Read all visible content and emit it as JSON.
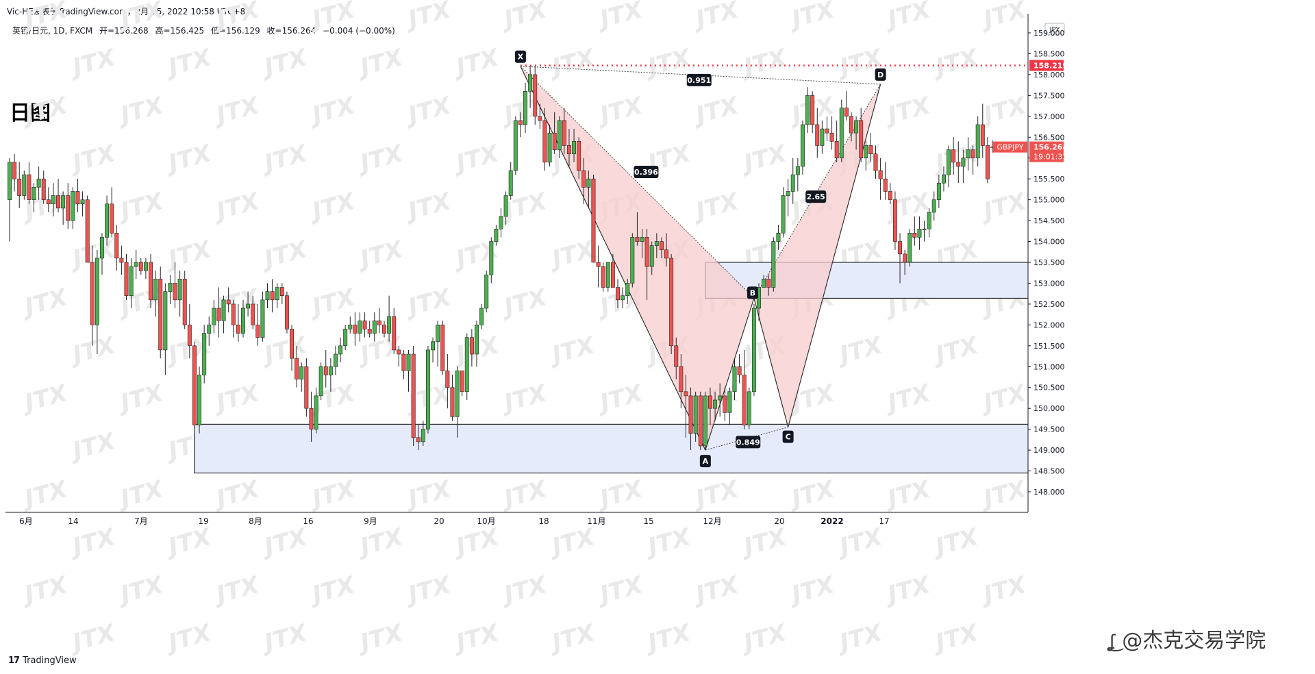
{
  "header": {
    "publish_line": "Vic-HE发表于TradingView.com，2月 15, 2022 10:58 UTC+8",
    "symbol_desc": "英镑/日元, 1D, FXCM",
    "open": "开=156.268",
    "high": "高=156.425",
    "low": "低=156.129",
    "close": "收=156.264",
    "change": "−0.004 (−0.00%)"
  },
  "chart_title": "日图",
  "footer": {
    "brand": "TradingView",
    "brand_mark": "17",
    "credit": "@杰克交易学院",
    "credit_icon": "weibo-icon"
  },
  "watermark": "JTX",
  "price_axis": {
    "currency": "JPY",
    "ticks": [
      "159.000",
      "158.500",
      "158.000",
      "157.500",
      "157.000",
      "156.500",
      "156.000",
      "155.500",
      "155.000",
      "154.500",
      "154.000",
      "153.500",
      "153.000",
      "152.500",
      "152.000",
      "151.500",
      "151.000",
      "150.500",
      "150.000",
      "149.500",
      "149.000",
      "148.500",
      "148.000"
    ],
    "level_line_price": "158.219",
    "symbol_tag": "GBPJPY",
    "last_price": "156.264",
    "countdown": "19:01:33"
  },
  "time_axis": {
    "ticks": [
      "6月",
      "14",
      "7月",
      "19",
      "8月",
      "16",
      "9月",
      "20",
      "10月",
      "18",
      "11月",
      "15",
      "12月",
      "20",
      "2022",
      "17"
    ]
  },
  "pattern": {
    "points": [
      "X",
      "A",
      "B",
      "C",
      "D"
    ],
    "ratios": {
      "xb": "0.396",
      "ac": "0.849",
      "bd": "2.65",
      "xd": "0.951"
    }
  },
  "colors": {
    "up": "#26a69a",
    "up_fill": "#4caf50",
    "down": "#ef5350",
    "zone_fill": "#e6ebfb",
    "pattern_fill": "#f7cccc",
    "level_line": "#f23645"
  },
  "chart_data": {
    "type": "candlestick",
    "symbol": "GBPJPY",
    "timeframe": "1D",
    "yaxis": {
      "unit": "JPY",
      "range": [
        147.5,
        159.3
      ]
    },
    "x_ticks": [
      "6月",
      "14",
      "7月",
      "19",
      "8月",
      "16",
      "9月",
      "20",
      "10月",
      "18",
      "11月",
      "15",
      "12月",
      "20",
      "2022",
      "17"
    ],
    "candles": [
      [
        155.0,
        156.0,
        154.0,
        155.9
      ],
      [
        155.9,
        156.1,
        155.2,
        155.5
      ],
      [
        155.5,
        155.9,
        154.8,
        155.1
      ],
      [
        155.1,
        155.7,
        155.0,
        155.6
      ],
      [
        155.6,
        155.9,
        154.9,
        155.0
      ],
      [
        155.0,
        155.4,
        154.7,
        155.3
      ],
      [
        155.3,
        155.8,
        155.0,
        155.5
      ],
      [
        155.5,
        155.7,
        154.9,
        155.0
      ],
      [
        155.0,
        155.3,
        154.7,
        154.9
      ],
      [
        154.9,
        155.4,
        154.6,
        155.1
      ],
      [
        155.1,
        155.5,
        154.7,
        154.8
      ],
      [
        154.8,
        155.2,
        154.4,
        155.1
      ],
      [
        155.1,
        155.4,
        154.3,
        154.5
      ],
      [
        154.5,
        155.3,
        154.3,
        155.2
      ],
      [
        155.2,
        155.5,
        154.7,
        154.9
      ],
      [
        154.9,
        155.2,
        154.6,
        155.0
      ],
      [
        155.0,
        155.1,
        153.5,
        153.5
      ],
      [
        153.5,
        153.9,
        151.5,
        152.0
      ],
      [
        152.0,
        153.8,
        151.3,
        153.6
      ],
      [
        153.6,
        154.2,
        153.2,
        154.1
      ],
      [
        154.1,
        155.1,
        153.9,
        154.9
      ],
      [
        154.9,
        155.3,
        154.1,
        154.2
      ],
      [
        154.2,
        154.4,
        153.3,
        153.6
      ],
      [
        153.6,
        153.9,
        153.2,
        153.5
      ],
      [
        153.5,
        153.7,
        152.6,
        152.7
      ],
      [
        152.7,
        153.6,
        152.4,
        153.4
      ],
      [
        153.4,
        153.8,
        153.1,
        153.5
      ],
      [
        153.5,
        153.6,
        153.2,
        153.3
      ],
      [
        153.3,
        153.6,
        153.1,
        153.5
      ],
      [
        153.5,
        153.7,
        152.4,
        152.6
      ],
      [
        152.6,
        153.3,
        152.2,
        153.1
      ],
      [
        153.1,
        153.4,
        151.2,
        151.4
      ],
      [
        151.4,
        153.0,
        150.8,
        152.8
      ],
      [
        152.8,
        153.2,
        152.5,
        153.0
      ],
      [
        153.0,
        153.5,
        152.4,
        152.6
      ],
      [
        152.6,
        153.3,
        152.2,
        153.1
      ],
      [
        153.1,
        153.3,
        151.9,
        152.0
      ],
      [
        152.0,
        152.5,
        151.2,
        151.5
      ],
      [
        151.5,
        151.6,
        149.4,
        149.6
      ],
      [
        149.6,
        151.0,
        149.4,
        150.8
      ],
      [
        150.8,
        152.0,
        150.6,
        151.8
      ],
      [
        151.8,
        152.2,
        151.5,
        152.0
      ],
      [
        152.0,
        152.6,
        151.8,
        152.4
      ],
      [
        152.4,
        152.9,
        151.7,
        152.1
      ],
      [
        152.1,
        152.7,
        151.8,
        152.6
      ],
      [
        152.6,
        152.9,
        152.3,
        152.5
      ],
      [
        152.5,
        152.6,
        151.7,
        152.0
      ],
      [
        152.0,
        152.5,
        151.6,
        151.8
      ],
      [
        151.8,
        152.6,
        151.7,
        152.4
      ],
      [
        152.4,
        152.8,
        152.2,
        152.5
      ],
      [
        152.5,
        152.7,
        151.9,
        152.0
      ],
      [
        152.0,
        152.5,
        151.5,
        151.7
      ],
      [
        151.7,
        152.8,
        151.6,
        152.6
      ],
      [
        152.6,
        153.0,
        152.4,
        152.8
      ],
      [
        152.8,
        153.1,
        152.3,
        152.6
      ],
      [
        152.6,
        153.0,
        152.4,
        152.9
      ],
      [
        152.9,
        153.0,
        152.5,
        152.7
      ],
      [
        152.7,
        152.8,
        151.8,
        151.9
      ],
      [
        151.9,
        152.0,
        150.9,
        151.2
      ],
      [
        151.2,
        151.5,
        150.5,
        150.7
      ],
      [
        150.7,
        151.1,
        150.4,
        151.0
      ],
      [
        151.0,
        151.2,
        149.8,
        150.0
      ],
      [
        150.0,
        150.4,
        149.2,
        149.5
      ],
      [
        149.5,
        150.5,
        149.4,
        150.3
      ],
      [
        150.3,
        151.1,
        150.2,
        151.0
      ],
      [
        151.0,
        151.4,
        150.5,
        150.8
      ],
      [
        150.8,
        151.2,
        150.4,
        151.0
      ],
      [
        151.0,
        151.5,
        150.8,
        151.3
      ],
      [
        151.3,
        151.7,
        151.1,
        151.5
      ],
      [
        151.5,
        152.0,
        151.4,
        151.9
      ],
      [
        151.9,
        152.2,
        151.8,
        152.0
      ],
      [
        152.0,
        152.3,
        151.5,
        151.8
      ],
      [
        151.8,
        152.3,
        151.6,
        152.1
      ],
      [
        152.1,
        152.3,
        151.7,
        151.9
      ],
      [
        151.9,
        152.1,
        151.7,
        151.8
      ],
      [
        151.8,
        152.3,
        151.6,
        152.1
      ],
      [
        152.1,
        152.4,
        151.8,
        152.0
      ],
      [
        152.0,
        152.1,
        151.7,
        151.8
      ],
      [
        151.8,
        152.7,
        151.6,
        152.2
      ],
      [
        152.2,
        152.4,
        151.3,
        151.4
      ],
      [
        151.4,
        151.5,
        151.0,
        151.3
      ],
      [
        151.3,
        151.4,
        150.7,
        150.9
      ],
      [
        150.9,
        151.4,
        150.4,
        151.3
      ],
      [
        151.3,
        151.5,
        149.1,
        149.3
      ],
      [
        149.3,
        149.6,
        149.0,
        149.2
      ],
      [
        149.2,
        149.7,
        149.1,
        149.5
      ],
      [
        149.5,
        151.5,
        149.4,
        151.4
      ],
      [
        151.4,
        151.7,
        151.1,
        151.6
      ],
      [
        151.6,
        152.1,
        151.0,
        152.0
      ],
      [
        152.0,
        152.1,
        150.8,
        150.9
      ],
      [
        150.9,
        151.3,
        150.0,
        150.5
      ],
      [
        150.5,
        150.8,
        149.7,
        149.8
      ],
      [
        149.8,
        151.0,
        149.3,
        150.9
      ],
      [
        150.9,
        150.9,
        150.3,
        150.4
      ],
      [
        150.4,
        151.8,
        150.2,
        151.7
      ],
      [
        151.7,
        151.9,
        151.0,
        151.3
      ],
      [
        151.3,
        152.1,
        151.0,
        152.0
      ],
      [
        152.0,
        152.5,
        151.9,
        152.4
      ],
      [
        152.4,
        153.3,
        152.3,
        153.2
      ],
      [
        153.2,
        154.1,
        153.0,
        154.0
      ],
      [
        154.0,
        154.4,
        153.9,
        154.3
      ],
      [
        154.3,
        154.8,
        154.1,
        154.6
      ],
      [
        154.6,
        155.2,
        154.4,
        155.1
      ],
      [
        155.1,
        155.9,
        155.0,
        155.7
      ],
      [
        155.7,
        157.0,
        155.6,
        156.9
      ],
      [
        156.9,
        157.1,
        156.5,
        156.8
      ],
      [
        156.8,
        157.8,
        156.6,
        157.6
      ],
      [
        157.6,
        158.2,
        157.2,
        158.0
      ],
      [
        158.0,
        158.2,
        156.8,
        157.0
      ],
      [
        157.0,
        157.3,
        156.7,
        156.9
      ],
      [
        156.9,
        157.2,
        155.7,
        155.9
      ],
      [
        155.9,
        156.8,
        155.8,
        156.6
      ],
      [
        156.6,
        157.1,
        156.1,
        156.2
      ],
      [
        156.2,
        157.0,
        156.0,
        156.9
      ],
      [
        156.9,
        157.2,
        156.1,
        156.3
      ],
      [
        156.3,
        156.7,
        155.8,
        156.1
      ],
      [
        156.1,
        156.7,
        155.9,
        156.4
      ],
      [
        156.4,
        156.5,
        155.5,
        155.7
      ],
      [
        155.7,
        156.0,
        154.9,
        155.3
      ],
      [
        155.3,
        155.7,
        154.8,
        155.5
      ],
      [
        155.5,
        155.6,
        153.5,
        153.5
      ],
      [
        153.5,
        153.9,
        152.9,
        153.4
      ],
      [
        153.4,
        153.5,
        152.8,
        152.9
      ],
      [
        152.9,
        153.5,
        152.8,
        153.5
      ],
      [
        153.5,
        153.7,
        152.9,
        152.9
      ],
      [
        152.9,
        153.1,
        152.4,
        152.6
      ],
      [
        152.6,
        152.9,
        152.4,
        152.7
      ],
      [
        152.7,
        153.1,
        152.5,
        153.0
      ],
      [
        153.0,
        154.2,
        152.9,
        154.1
      ],
      [
        154.1,
        154.7,
        153.9,
        154.0
      ],
      [
        154.0,
        154.3,
        153.6,
        154.1
      ],
      [
        154.1,
        154.3,
        152.6,
        153.4
      ],
      [
        153.4,
        154.0,
        153.2,
        153.9
      ],
      [
        153.9,
        154.2,
        153.6,
        154.0
      ],
      [
        154.0,
        154.1,
        153.6,
        153.8
      ],
      [
        153.8,
        154.2,
        153.4,
        153.6
      ],
      [
        153.6,
        153.7,
        151.3,
        151.5
      ],
      [
        151.5,
        151.7,
        150.7,
        151.0
      ],
      [
        151.0,
        151.3,
        150.0,
        150.4
      ],
      [
        150.4,
        150.8,
        149.3,
        150.3
      ],
      [
        150.3,
        150.5,
        149.0,
        149.4
      ],
      [
        149.4,
        150.4,
        149.2,
        150.3
      ],
      [
        150.3,
        150.4,
        149.0,
        149.1
      ],
      [
        149.1,
        150.4,
        149.0,
        150.3
      ],
      [
        150.3,
        150.5,
        149.6,
        150.0
      ],
      [
        150.0,
        150.4,
        149.7,
        150.2
      ],
      [
        150.2,
        150.6,
        149.8,
        150.3
      ],
      [
        150.3,
        150.5,
        149.7,
        149.9
      ],
      [
        149.9,
        150.5,
        149.6,
        150.4
      ],
      [
        150.4,
        151.2,
        150.2,
        151.0
      ],
      [
        151.0,
        151.3,
        150.6,
        150.8
      ],
      [
        150.8,
        151.4,
        149.5,
        149.6
      ],
      [
        149.6,
        150.5,
        149.5,
        150.4
      ],
      [
        150.4,
        152.5,
        150.3,
        152.4
      ],
      [
        152.4,
        153.0,
        152.1,
        152.9
      ],
      [
        152.9,
        153.2,
        153.0,
        153.1
      ],
      [
        153.1,
        153.2,
        152.7,
        152.9
      ],
      [
        152.9,
        154.1,
        152.8,
        154.0
      ],
      [
        154.0,
        154.4,
        153.8,
        154.2
      ],
      [
        154.2,
        155.3,
        154.1,
        155.1
      ],
      [
        155.1,
        155.5,
        154.6,
        155.2
      ],
      [
        155.2,
        156.0,
        154.9,
        155.6
      ],
      [
        155.6,
        156.0,
        155.2,
        155.8
      ],
      [
        155.8,
        156.9,
        155.6,
        156.8
      ],
      [
        156.8,
        157.7,
        156.6,
        157.5
      ],
      [
        157.5,
        157.6,
        156.6,
        156.8
      ],
      [
        156.8,
        157.2,
        156.0,
        156.3
      ],
      [
        156.3,
        156.9,
        156.1,
        156.7
      ],
      [
        156.7,
        157.0,
        156.4,
        156.6
      ],
      [
        156.6,
        157.0,
        156.2,
        156.4
      ],
      [
        156.4,
        156.9,
        155.9,
        156.0
      ],
      [
        156.0,
        157.4,
        155.9,
        157.2
      ],
      [
        157.2,
        157.6,
        156.9,
        157.0
      ],
      [
        157.0,
        157.1,
        156.4,
        156.6
      ],
      [
        156.6,
        157.0,
        156.2,
        156.9
      ],
      [
        156.9,
        157.2,
        155.9,
        156.0
      ],
      [
        156.0,
        156.4,
        155.7,
        156.3
      ],
      [
        156.3,
        156.6,
        155.9,
        156.1
      ],
      [
        156.1,
        156.3,
        155.5,
        155.7
      ],
      [
        155.7,
        156.0,
        155.0,
        155.5
      ],
      [
        155.5,
        155.9,
        155.0,
        155.2
      ],
      [
        155.2,
        155.4,
        154.9,
        155.0
      ],
      [
        155.0,
        155.2,
        153.8,
        154.0
      ],
      [
        154.0,
        154.2,
        153.0,
        153.7
      ],
      [
        153.7,
        153.8,
        153.2,
        153.5
      ],
      [
        153.5,
        154.3,
        153.4,
        154.2
      ],
      [
        154.2,
        154.6,
        153.9,
        154.1
      ],
      [
        154.1,
        154.6,
        153.8,
        154.3
      ],
      [
        154.3,
        154.5,
        154.0,
        154.3
      ],
      [
        154.3,
        154.8,
        154.1,
        154.7
      ],
      [
        154.7,
        155.2,
        154.5,
        155.0
      ],
      [
        155.0,
        155.6,
        154.8,
        155.4
      ],
      [
        155.4,
        155.8,
        155.2,
        155.6
      ],
      [
        155.6,
        156.3,
        155.3,
        156.2
      ],
      [
        156.2,
        156.5,
        155.6,
        155.9
      ],
      [
        155.9,
        156.4,
        155.4,
        155.8
      ],
      [
        155.8,
        156.2,
        155.4,
        156.0
      ],
      [
        156.0,
        156.5,
        155.7,
        156.2
      ],
      [
        156.2,
        156.3,
        155.6,
        156.0
      ],
      [
        156.0,
        157.0,
        155.8,
        156.8
      ],
      [
        156.8,
        157.3,
        156.0,
        156.3
      ],
      [
        156.3,
        156.5,
        155.4,
        155.5
      ],
      [
        156.268,
        156.425,
        156.129,
        156.264
      ]
    ],
    "horizontal_level": 158.219,
    "zones": [
      {
        "from_index": 38,
        "to_index": "end",
        "top": 149.62,
        "bottom": 148.45
      },
      {
        "from_index": 143,
        "to_index": "end",
        "top": 153.5,
        "bottom": 152.64
      }
    ],
    "harmonic_pattern": {
      "X": {
        "index": 105,
        "price": 158.2
      },
      "A": {
        "index": 143,
        "price": 149.0
      },
      "B": {
        "index": 153,
        "price": 152.64
      },
      "C": {
        "index": 160,
        "price": 149.55
      },
      "D": {
        "index": 179,
        "price": 157.77
      },
      "ratios": {
        "XB": 0.396,
        "AC": 0.849,
        "BD": 2.65,
        "XD": 0.951
      }
    }
  }
}
